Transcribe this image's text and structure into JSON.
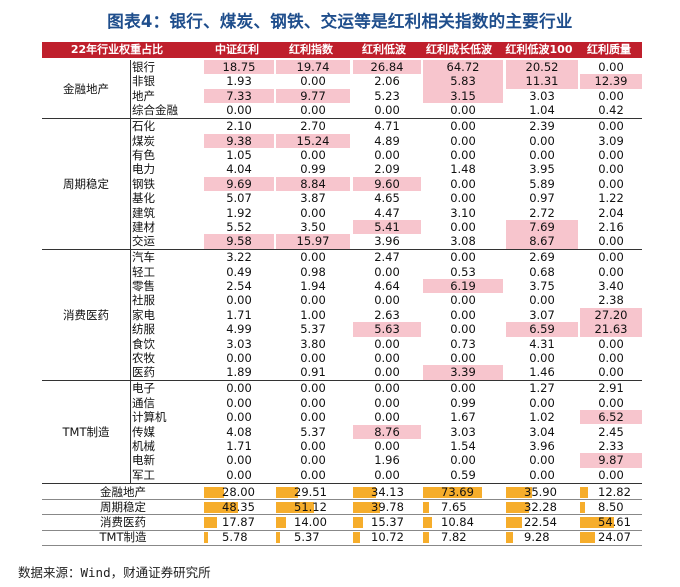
{
  "title": "图表4：银行、煤炭、钢铁、交运等是红利相关指数的主要行业",
  "header": [
    "22年行业权重占比",
    "中证红利",
    "红利指数",
    "红利低波",
    "红利成长低波",
    "红利低波100",
    "红利质量"
  ],
  "groups": [
    {
      "name": "金融地产",
      "rows": [
        {
          "sub": "银行",
          "values": [
            "18.75",
            "19.74",
            "26.84",
            "64.72",
            "20.52",
            "0.00"
          ],
          "hl": [
            true,
            true,
            true,
            true,
            true,
            false
          ]
        },
        {
          "sub": "非银",
          "values": [
            "1.93",
            "0.00",
            "2.06",
            "5.83",
            "11.31",
            "12.39"
          ],
          "hl": [
            false,
            false,
            false,
            true,
            true,
            true
          ]
        },
        {
          "sub": "地产",
          "values": [
            "7.33",
            "9.77",
            "5.23",
            "3.15",
            "3.03",
            "0.00"
          ],
          "hl": [
            true,
            true,
            false,
            true,
            false,
            false
          ]
        },
        {
          "sub": "综合金融",
          "values": [
            "0.00",
            "0.00",
            "0.00",
            "0.00",
            "1.04",
            "0.42"
          ],
          "hl": [
            false,
            false,
            false,
            false,
            false,
            false
          ]
        }
      ]
    },
    {
      "name": "周期稳定",
      "rows": [
        {
          "sub": "石化",
          "values": [
            "2.10",
            "2.70",
            "4.71",
            "0.00",
            "2.39",
            "0.00"
          ],
          "hl": [
            false,
            false,
            false,
            false,
            false,
            false
          ]
        },
        {
          "sub": "煤炭",
          "values": [
            "9.38",
            "15.24",
            "4.89",
            "0.00",
            "0.00",
            "3.09"
          ],
          "hl": [
            true,
            true,
            false,
            false,
            false,
            false
          ]
        },
        {
          "sub": "有色",
          "values": [
            "1.05",
            "0.00",
            "0.00",
            "0.00",
            "0.00",
            "0.00"
          ],
          "hl": [
            false,
            false,
            false,
            false,
            false,
            false
          ]
        },
        {
          "sub": "电力",
          "values": [
            "4.04",
            "0.99",
            "2.09",
            "1.48",
            "3.95",
            "0.00"
          ],
          "hl": [
            false,
            false,
            false,
            false,
            false,
            false
          ]
        },
        {
          "sub": "钢铁",
          "values": [
            "9.69",
            "8.84",
            "9.60",
            "0.00",
            "5.89",
            "0.00"
          ],
          "hl": [
            true,
            true,
            true,
            false,
            false,
            false
          ]
        },
        {
          "sub": "基化",
          "values": [
            "5.07",
            "3.87",
            "4.65",
            "0.00",
            "0.97",
            "1.22"
          ],
          "hl": [
            false,
            false,
            false,
            false,
            false,
            false
          ]
        },
        {
          "sub": "建筑",
          "values": [
            "1.92",
            "0.00",
            "4.47",
            "3.10",
            "2.72",
            "2.04"
          ],
          "hl": [
            false,
            false,
            false,
            false,
            false,
            false
          ]
        },
        {
          "sub": "建材",
          "values": [
            "5.52",
            "3.50",
            "5.41",
            "0.00",
            "7.69",
            "2.16"
          ],
          "hl": [
            false,
            false,
            true,
            false,
            true,
            false
          ]
        },
        {
          "sub": "交运",
          "values": [
            "9.58",
            "15.97",
            "3.96",
            "3.08",
            "8.67",
            "0.00"
          ],
          "hl": [
            true,
            true,
            false,
            false,
            true,
            false
          ]
        }
      ]
    },
    {
      "name": "消费医药",
      "rows": [
        {
          "sub": "汽车",
          "values": [
            "3.22",
            "0.00",
            "2.47",
            "0.00",
            "2.69",
            "0.00"
          ],
          "hl": [
            false,
            false,
            false,
            false,
            false,
            false
          ]
        },
        {
          "sub": "轻工",
          "values": [
            "0.49",
            "0.98",
            "0.00",
            "0.53",
            "0.68",
            "0.00"
          ],
          "hl": [
            false,
            false,
            false,
            false,
            false,
            false
          ]
        },
        {
          "sub": "零售",
          "values": [
            "2.54",
            "1.94",
            "4.64",
            "6.19",
            "3.75",
            "3.40"
          ],
          "hl": [
            false,
            false,
            false,
            true,
            false,
            false
          ]
        },
        {
          "sub": "社服",
          "values": [
            "0.00",
            "0.00",
            "0.00",
            "0.00",
            "0.00",
            "2.38"
          ],
          "hl": [
            false,
            false,
            false,
            false,
            false,
            false
          ]
        },
        {
          "sub": "家电",
          "values": [
            "1.71",
            "1.00",
            "2.63",
            "0.00",
            "3.07",
            "27.20"
          ],
          "hl": [
            false,
            false,
            false,
            false,
            false,
            true
          ]
        },
        {
          "sub": "纺服",
          "values": [
            "4.99",
            "5.37",
            "5.63",
            "0.00",
            "6.59",
            "21.63"
          ],
          "hl": [
            false,
            false,
            true,
            false,
            true,
            true
          ]
        },
        {
          "sub": "食饮",
          "values": [
            "3.03",
            "3.80",
            "0.00",
            "0.73",
            "4.31",
            "0.00"
          ],
          "hl": [
            false,
            false,
            false,
            false,
            false,
            false
          ]
        },
        {
          "sub": "农牧",
          "values": [
            "0.00",
            "0.00",
            "0.00",
            "0.00",
            "0.00",
            "0.00"
          ],
          "hl": [
            false,
            false,
            false,
            false,
            false,
            false
          ]
        },
        {
          "sub": "医药",
          "values": [
            "1.89",
            "0.91",
            "0.00",
            "3.39",
            "1.46",
            "0.00"
          ],
          "hl": [
            false,
            false,
            false,
            true,
            false,
            false
          ]
        }
      ]
    },
    {
      "name": "TMT制造",
      "rows": [
        {
          "sub": "电子",
          "values": [
            "0.00",
            "0.00",
            "0.00",
            "0.00",
            "1.27",
            "2.91"
          ],
          "hl": [
            false,
            false,
            false,
            false,
            false,
            false
          ]
        },
        {
          "sub": "通信",
          "values": [
            "0.00",
            "0.00",
            "0.00",
            "0.99",
            "0.00",
            "0.00"
          ],
          "hl": [
            false,
            false,
            false,
            false,
            false,
            false
          ]
        },
        {
          "sub": "计算机",
          "values": [
            "0.00",
            "0.00",
            "0.00",
            "1.67",
            "1.02",
            "6.52"
          ],
          "hl": [
            false,
            false,
            false,
            false,
            false,
            true
          ]
        },
        {
          "sub": "传媒",
          "values": [
            "4.08",
            "5.37",
            "8.76",
            "3.03",
            "3.04",
            "2.45"
          ],
          "hl": [
            false,
            false,
            true,
            false,
            false,
            false
          ]
        },
        {
          "sub": "机械",
          "values": [
            "1.71",
            "0.00",
            "0.00",
            "1.54",
            "3.96",
            "2.33"
          ],
          "hl": [
            false,
            false,
            false,
            false,
            false,
            false
          ]
        },
        {
          "sub": "电新",
          "values": [
            "0.00",
            "0.00",
            "1.96",
            "0.00",
            "0.00",
            "9.87"
          ],
          "hl": [
            false,
            false,
            false,
            false,
            false,
            true
          ]
        },
        {
          "sub": "军工",
          "values": [
            "0.00",
            "0.00",
            "0.00",
            "0.59",
            "0.00",
            "0.00"
          ],
          "hl": [
            false,
            false,
            false,
            false,
            false,
            false
          ]
        }
      ]
    }
  ],
  "summary": [
    {
      "label": "金融地产",
      "values": [
        "28.00",
        "29.51",
        "34.13",
        "73.69",
        "35.90",
        "12.82"
      ],
      "fractions": [
        0.28,
        0.2951,
        0.3413,
        0.7369,
        0.359,
        0.1282
      ]
    },
    {
      "label": "周期稳定",
      "values": [
        "48.35",
        "51.12",
        "39.78",
        "7.65",
        "32.28",
        "8.50"
      ],
      "fractions": [
        0.4835,
        0.5112,
        0.3978,
        0.0765,
        0.3228,
        0.085
      ]
    },
    {
      "label": "消费医药",
      "values": [
        "17.87",
        "14.00",
        "15.37",
        "10.84",
        "22.54",
        "54.61"
      ],
      "fractions": [
        0.1787,
        0.14,
        0.1537,
        0.1084,
        0.2254,
        0.5461
      ]
    },
    {
      "label": "TMT制造",
      "values": [
        "5.78",
        "5.37",
        "10.72",
        "7.82",
        "9.28",
        "24.07"
      ],
      "fractions": [
        0.0578,
        0.0537,
        0.1072,
        0.0782,
        0.0928,
        0.2407
      ]
    }
  ],
  "colors": {
    "header_bg": "#bf1f2c",
    "highlight": "#f7c5cd",
    "bar": "#f6ad2b",
    "title": "#1f4e8c"
  },
  "source": "数据来源：Wind，财通证券研究所"
}
